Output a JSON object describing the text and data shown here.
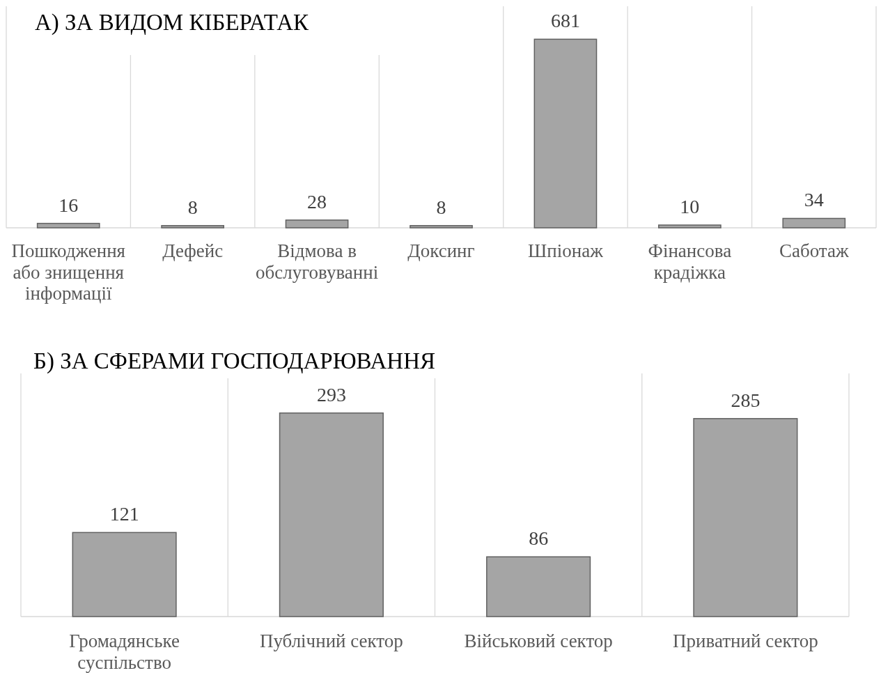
{
  "chart_data": [
    {
      "type": "bar",
      "title": "А) ЗА ВИДОМ КІБЕРАТАК",
      "categories": [
        "Пошкодження або знищення інформації",
        "Дефейс",
        "Відмова в обслуговуванні",
        "Доксинг",
        "Шпіонаж",
        "Фінансова крадіжка",
        "Саботаж"
      ],
      "values": [
        16,
        8,
        28,
        8,
        681,
        10,
        34
      ],
      "color": "#a5a5a5",
      "data_labels": true,
      "ylim": [
        0,
        800
      ],
      "grid": "x",
      "tick_labels": "x"
    },
    {
      "type": "bar",
      "title": "Б) ЗА СФЕРАМИ ГОСПОДАРЮВАННЯ",
      "categories": [
        "Громадянське суспільство",
        "Публічний сектор",
        "Військовий сектор",
        "Приватний сектор"
      ],
      "values": [
        121,
        293,
        86,
        285
      ],
      "color": "#a5a5a5",
      "data_labels": true,
      "ylim": [
        0,
        350
      ],
      "grid": "x",
      "tick_labels": "x"
    }
  ]
}
